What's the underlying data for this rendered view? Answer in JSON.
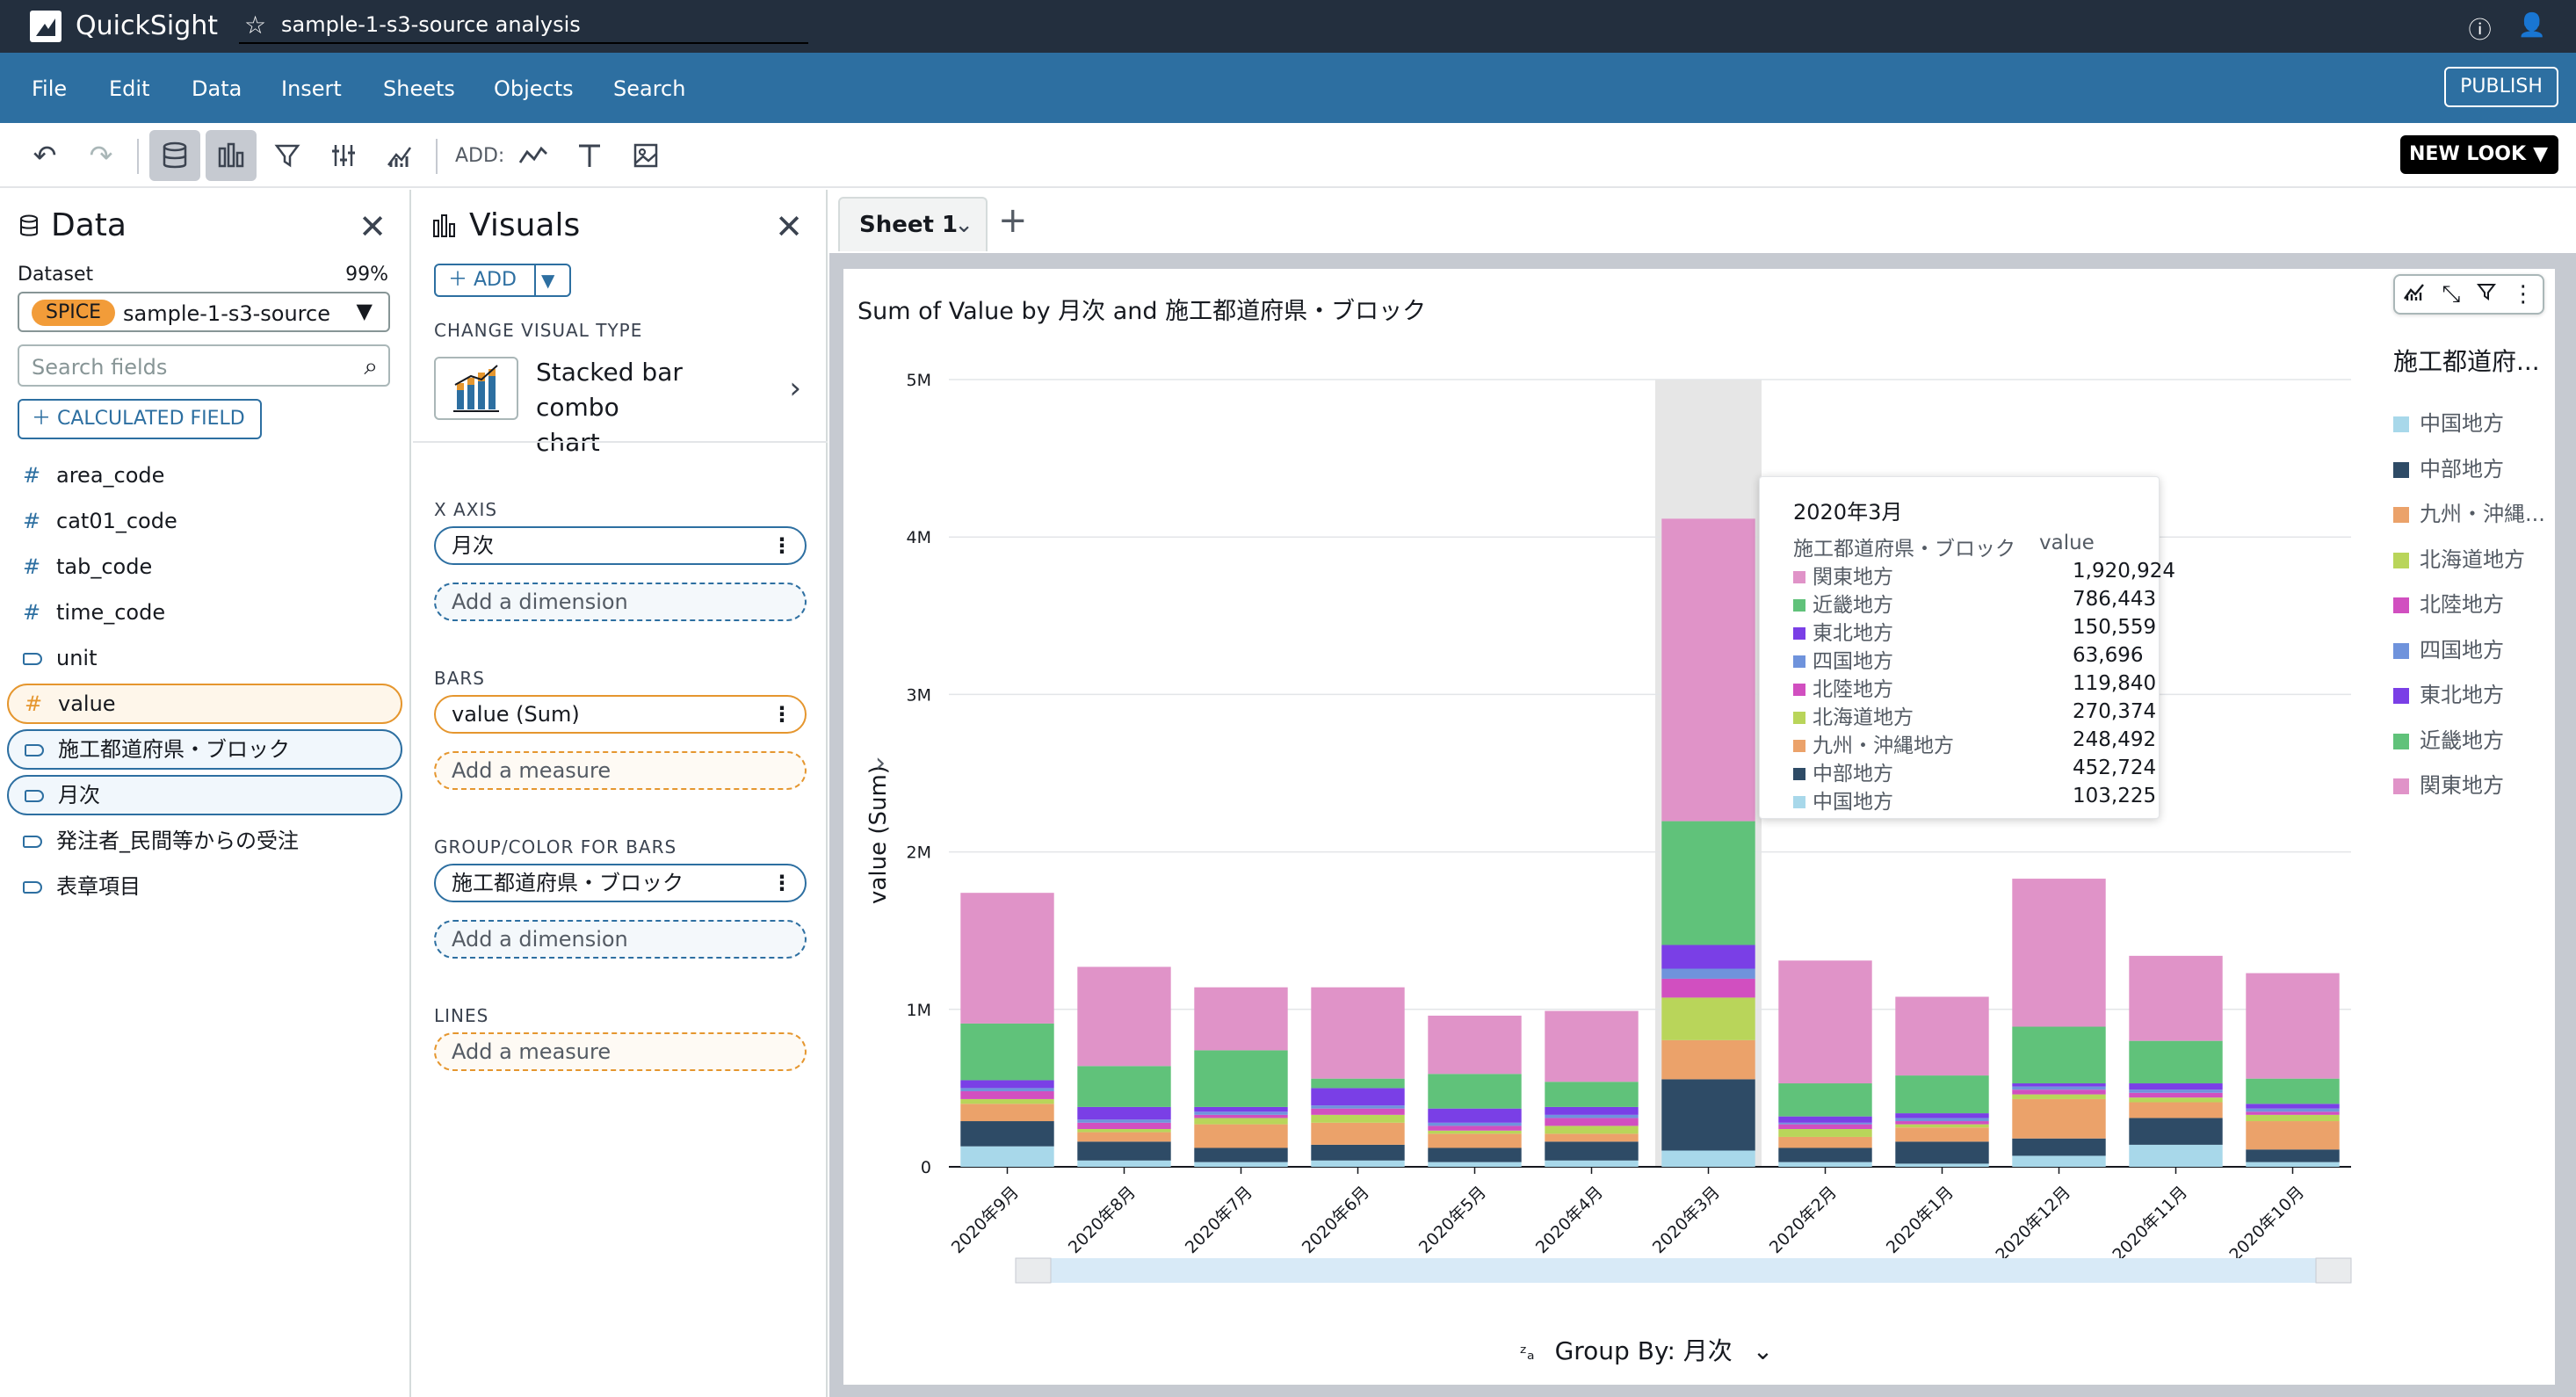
{
  "topbar": {
    "brand": "QuickSight",
    "analysis_title": "sample-1-s3-source analysis"
  },
  "menu": [
    "File",
    "Edit",
    "Data",
    "Insert",
    "Sheets",
    "Objects",
    "Search"
  ],
  "publish_label": "PUBLISH",
  "toolbar": {
    "add_label": "ADD:",
    "new_look_label": "NEW LOOK"
  },
  "data_panel": {
    "title": "Data",
    "dataset_label": "Dataset",
    "dataset_pct": "99%",
    "spice_badge": "SPICE",
    "dataset_name": "sample-1-s3-source",
    "search_placeholder": "Search fields",
    "calc_field_label": "CALCULATED FIELD",
    "fields": [
      {
        "name": "area_code",
        "type": "measure"
      },
      {
        "name": "cat01_code",
        "type": "measure"
      },
      {
        "name": "tab_code",
        "type": "measure"
      },
      {
        "name": "time_code",
        "type": "measure"
      },
      {
        "name": "unit",
        "type": "dimension"
      },
      {
        "name": "value",
        "type": "measure"
      },
      {
        "name": "施工都道府県・ブロック",
        "type": "dimension"
      },
      {
        "name": "月次",
        "type": "dimension"
      },
      {
        "name": "発注者_民間等からの受注",
        "type": "dimension"
      },
      {
        "name": "表章項目",
        "type": "dimension"
      }
    ]
  },
  "visuals_panel": {
    "title": "Visuals",
    "add_label": "ADD",
    "change_type_label": "CHANGE VISUAL TYPE",
    "visual_type_line1": "Stacked bar combo",
    "visual_type_line2": "chart",
    "x_axis_label": "X AXIS",
    "x_axis_field": "月次",
    "add_dimension": "Add a dimension",
    "bars_label": "BARS",
    "bars_field": "value (Sum)",
    "add_measure": "Add a measure",
    "group_label": "GROUP/COLOR FOR BARS",
    "group_field": "施工都道府県・ブロック",
    "lines_label": "LINES"
  },
  "sheet": {
    "tab_label": "Sheet 1"
  },
  "visual": {
    "title": "Sum of Value by 月次 and 施工都道府県・ブロック",
    "legend_title": "施工都道府...",
    "group_by_label": "Group By: 月次"
  },
  "colors": {
    "中国地方": "#a8d8ea",
    "中部地方": "#2e4b66",
    "九州・沖縄地方": "#eba26a",
    "北海道地方": "#b9d55a",
    "北陸地方": "#d14fc0",
    "四国地方": "#6f93dc",
    "東北地方": "#7a3fe6",
    "近畿地方": "#60c27a",
    "関東地方": "#e093c8"
  },
  "tooltip": {
    "title": "2020年3月",
    "col1": "施工都道府県・ブロック",
    "col2": "value",
    "rows": [
      {
        "name": "関東地方",
        "value": "1,920,924"
      },
      {
        "name": "近畿地方",
        "value": "786,443"
      },
      {
        "name": "東北地方",
        "value": "150,559"
      },
      {
        "name": "四国地方",
        "value": "63,696"
      },
      {
        "name": "北陸地方",
        "value": "119,840"
      },
      {
        "name": "北海道地方",
        "value": "270,374"
      },
      {
        "name": "九州・沖縄地方",
        "value": "248,492"
      },
      {
        "name": "中部地方",
        "value": "452,724"
      },
      {
        "name": "中国地方",
        "value": "103,225"
      }
    ]
  },
  "chart_data": {
    "type": "bar",
    "stacked": true,
    "ylabel": "value (Sum)",
    "ylim": [
      0,
      5000000
    ],
    "yticks": [
      {
        "v": 0,
        "label": "0"
      },
      {
        "v": 1000000,
        "label": "1M"
      },
      {
        "v": 2000000,
        "label": "2M"
      },
      {
        "v": 3000000,
        "label": "3M"
      },
      {
        "v": 4000000,
        "label": "4M"
      },
      {
        "v": 5000000,
        "label": "5M"
      }
    ],
    "categories": [
      "2020年9月",
      "2020年8月",
      "2020年7月",
      "2020年6月",
      "2020年5月",
      "2020年4月",
      "2020年3月",
      "2020年2月",
      "2020年1月",
      "2020年12月",
      "2020年11月",
      "2020年10月"
    ],
    "highlight_index": 6,
    "series": [
      {
        "name": "中国地方",
        "values": [
          130000,
          40000,
          30000,
          40000,
          30000,
          40000,
          103225,
          30000,
          20000,
          70000,
          140000,
          30000
        ]
      },
      {
        "name": "中部地方",
        "values": [
          160000,
          120000,
          90000,
          100000,
          90000,
          120000,
          452724,
          90000,
          140000,
          110000,
          170000,
          80000
        ]
      },
      {
        "name": "九州・沖縄地方",
        "values": [
          110000,
          60000,
          150000,
          140000,
          90000,
          50000,
          248492,
          70000,
          90000,
          250000,
          100000,
          180000
        ]
      },
      {
        "name": "北海道地方",
        "values": [
          30000,
          20000,
          40000,
          50000,
          20000,
          50000,
          270374,
          50000,
          20000,
          30000,
          30000,
          40000
        ]
      },
      {
        "name": "北陸地方",
        "values": [
          50000,
          40000,
          20000,
          40000,
          30000,
          50000,
          119840,
          30000,
          20000,
          30000,
          30000,
          20000
        ]
      },
      {
        "name": "四国地方",
        "values": [
          20000,
          20000,
          20000,
          20000,
          20000,
          20000,
          63696,
          10000,
          20000,
          20000,
          20000,
          20000
        ]
      },
      {
        "name": "東北地方",
        "values": [
          50000,
          80000,
          30000,
          110000,
          90000,
          50000,
          150559,
          40000,
          30000,
          20000,
          40000,
          30000
        ]
      },
      {
        "name": "近畿地方",
        "values": [
          360000,
          260000,
          360000,
          60000,
          220000,
          160000,
          786443,
          210000,
          240000,
          360000,
          270000,
          160000
        ]
      },
      {
        "name": "関東地方",
        "values": [
          830000,
          630000,
          400000,
          580000,
          370000,
          450000,
          1920924,
          780000,
          500000,
          940000,
          540000,
          670000
        ]
      }
    ],
    "legend_position": "right"
  }
}
